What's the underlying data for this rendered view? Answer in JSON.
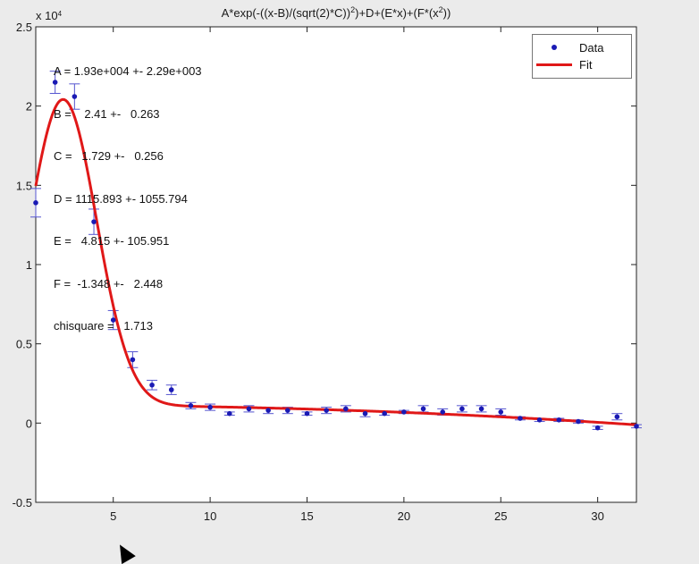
{
  "chart_data": {
    "type": "scatter",
    "title_parts": [
      "A*exp(-((x-B)/(sqrt(2)*C))",
      "2",
      ")+D+(E*x)+(F*(x",
      "2",
      "))"
    ],
    "exponent_label": "x 10",
    "exponent_power": "4",
    "xlim": [
      1,
      32
    ],
    "ylim": [
      -0.5,
      2.5
    ],
    "xticks": [
      5,
      10,
      15,
      20,
      25,
      30
    ],
    "yticks": [
      -0.5,
      0,
      0.5,
      1,
      1.5,
      2,
      2.5
    ],
    "grid": false,
    "legend_position": "top-right",
    "series": [
      {
        "name": "Data",
        "marker": "dot",
        "color": "#1a1ab4",
        "x": [
          1,
          2,
          3,
          4,
          5,
          6,
          7,
          8,
          9,
          10,
          11,
          12,
          13,
          14,
          15,
          16,
          17,
          18,
          19,
          20,
          21,
          22,
          23,
          24,
          25,
          26,
          27,
          28,
          29,
          30,
          31,
          32
        ],
        "values": [
          1.39,
          2.15,
          2.06,
          1.27,
          0.65,
          0.4,
          0.24,
          0.21,
          0.11,
          0.1,
          0.06,
          0.09,
          0.08,
          0.08,
          0.06,
          0.08,
          0.09,
          0.06,
          0.06,
          0.07,
          0.09,
          0.07,
          0.09,
          0.09,
          0.07,
          0.03,
          0.02,
          0.02,
          0.01,
          -0.03,
          0.04,
          -0.02
        ],
        "errors": [
          0.09,
          0.07,
          0.08,
          0.08,
          0.06,
          0.05,
          0.03,
          0.03,
          0.02,
          0.02,
          0.01,
          0.02,
          0.02,
          0.02,
          0.01,
          0.02,
          0.02,
          0.02,
          0.01,
          0.01,
          0.02,
          0.02,
          0.02,
          0.02,
          0.02,
          0.01,
          0.01,
          0.01,
          0.01,
          0.01,
          0.02,
          0.01
        ]
      },
      {
        "name": "Fit",
        "color": "#e01818",
        "params": {
          "A": 1.93,
          "B": 2.41,
          "C": 1.729,
          "D": 0.1115893,
          "E": 0.0004815,
          "F": -0.0001348
        }
      }
    ],
    "annotations": [
      "A = 1.93e+004 +- 2.29e+003",
      "B =    2.41 +-   0.263",
      "C =   1.729 +-   0.256",
      "D = 1115.893 +- 1055.794",
      "E =   4.815 +- 105.951",
      "F =  -1.348 +-   2.448",
      "chisquare =   1.713"
    ]
  }
}
